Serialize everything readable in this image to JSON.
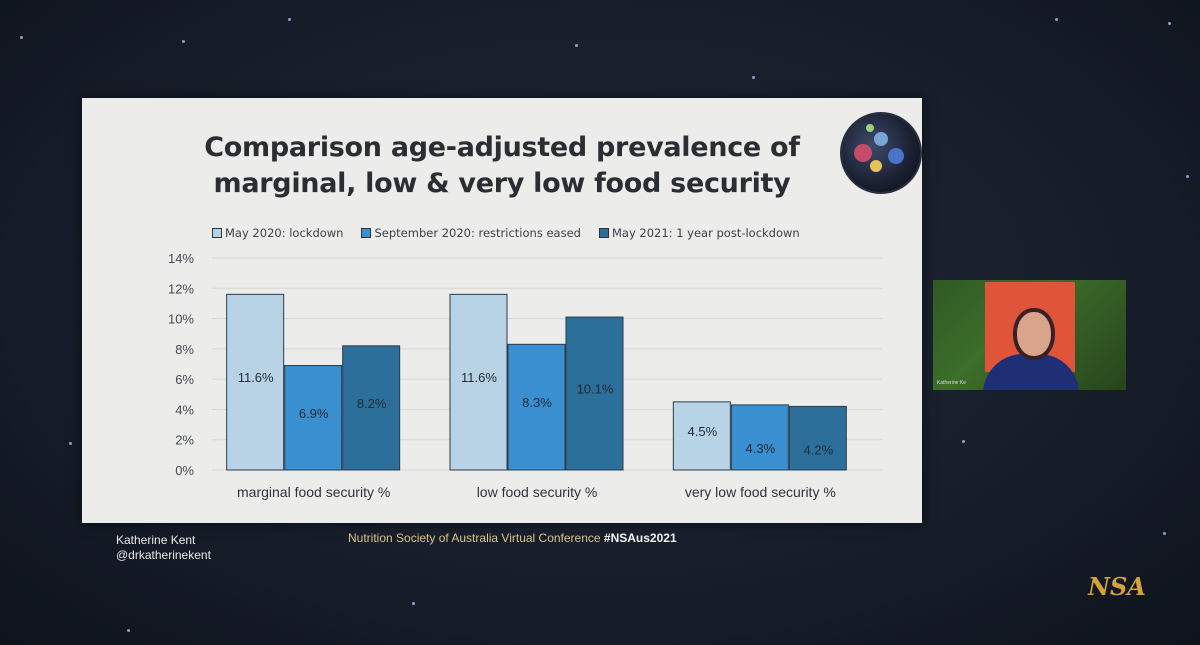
{
  "slide": {
    "title_line1": "Comparison age-adjusted prevalence of",
    "title_line2": "marginal, low & very low food security"
  },
  "footer": {
    "presenter_name": "Katherine Kent",
    "presenter_handle": "@drkatherinekent",
    "conference_text": "Nutrition Society of Australia Virtual Conference",
    "hashtag": "#NSAus2021"
  },
  "webcam": {
    "label": "Katherine Ke"
  },
  "logo": {
    "text": "NSA"
  },
  "colors": {
    "slide_background": "#ececea",
    "series_1": "#b9d3e6",
    "series_2": "#3a8fd0",
    "series_3": "#2b6f9a",
    "accent_logo": "#d4a13a"
  },
  "chart_data": {
    "type": "bar",
    "title": "Comparison age-adjusted prevalence of marginal, low & very low food security",
    "categories": [
      "marginal food security %",
      "low food security %",
      "very low food security %"
    ],
    "series": [
      {
        "name": "May 2020: lockdown",
        "values": [
          11.6,
          11.6,
          4.5
        ],
        "labels": [
          "11.6%",
          "11.6%",
          "4.5%"
        ]
      },
      {
        "name": "September 2020: restrictions eased",
        "values": [
          6.9,
          8.3,
          4.3
        ],
        "labels": [
          "6.9%",
          "8.3%",
          "4.3%"
        ]
      },
      {
        "name": "May 2021: 1 year post-lockdown",
        "values": [
          8.2,
          10.1,
          4.2
        ],
        "labels": [
          "8.2%",
          "10.1%",
          "4.2%"
        ]
      }
    ],
    "y_ticks": [
      "0%",
      "2%",
      "4%",
      "6%",
      "8%",
      "10%",
      "12%",
      "14%"
    ],
    "ylim": [
      0,
      14
    ],
    "grid": true,
    "legend_position": "top"
  }
}
